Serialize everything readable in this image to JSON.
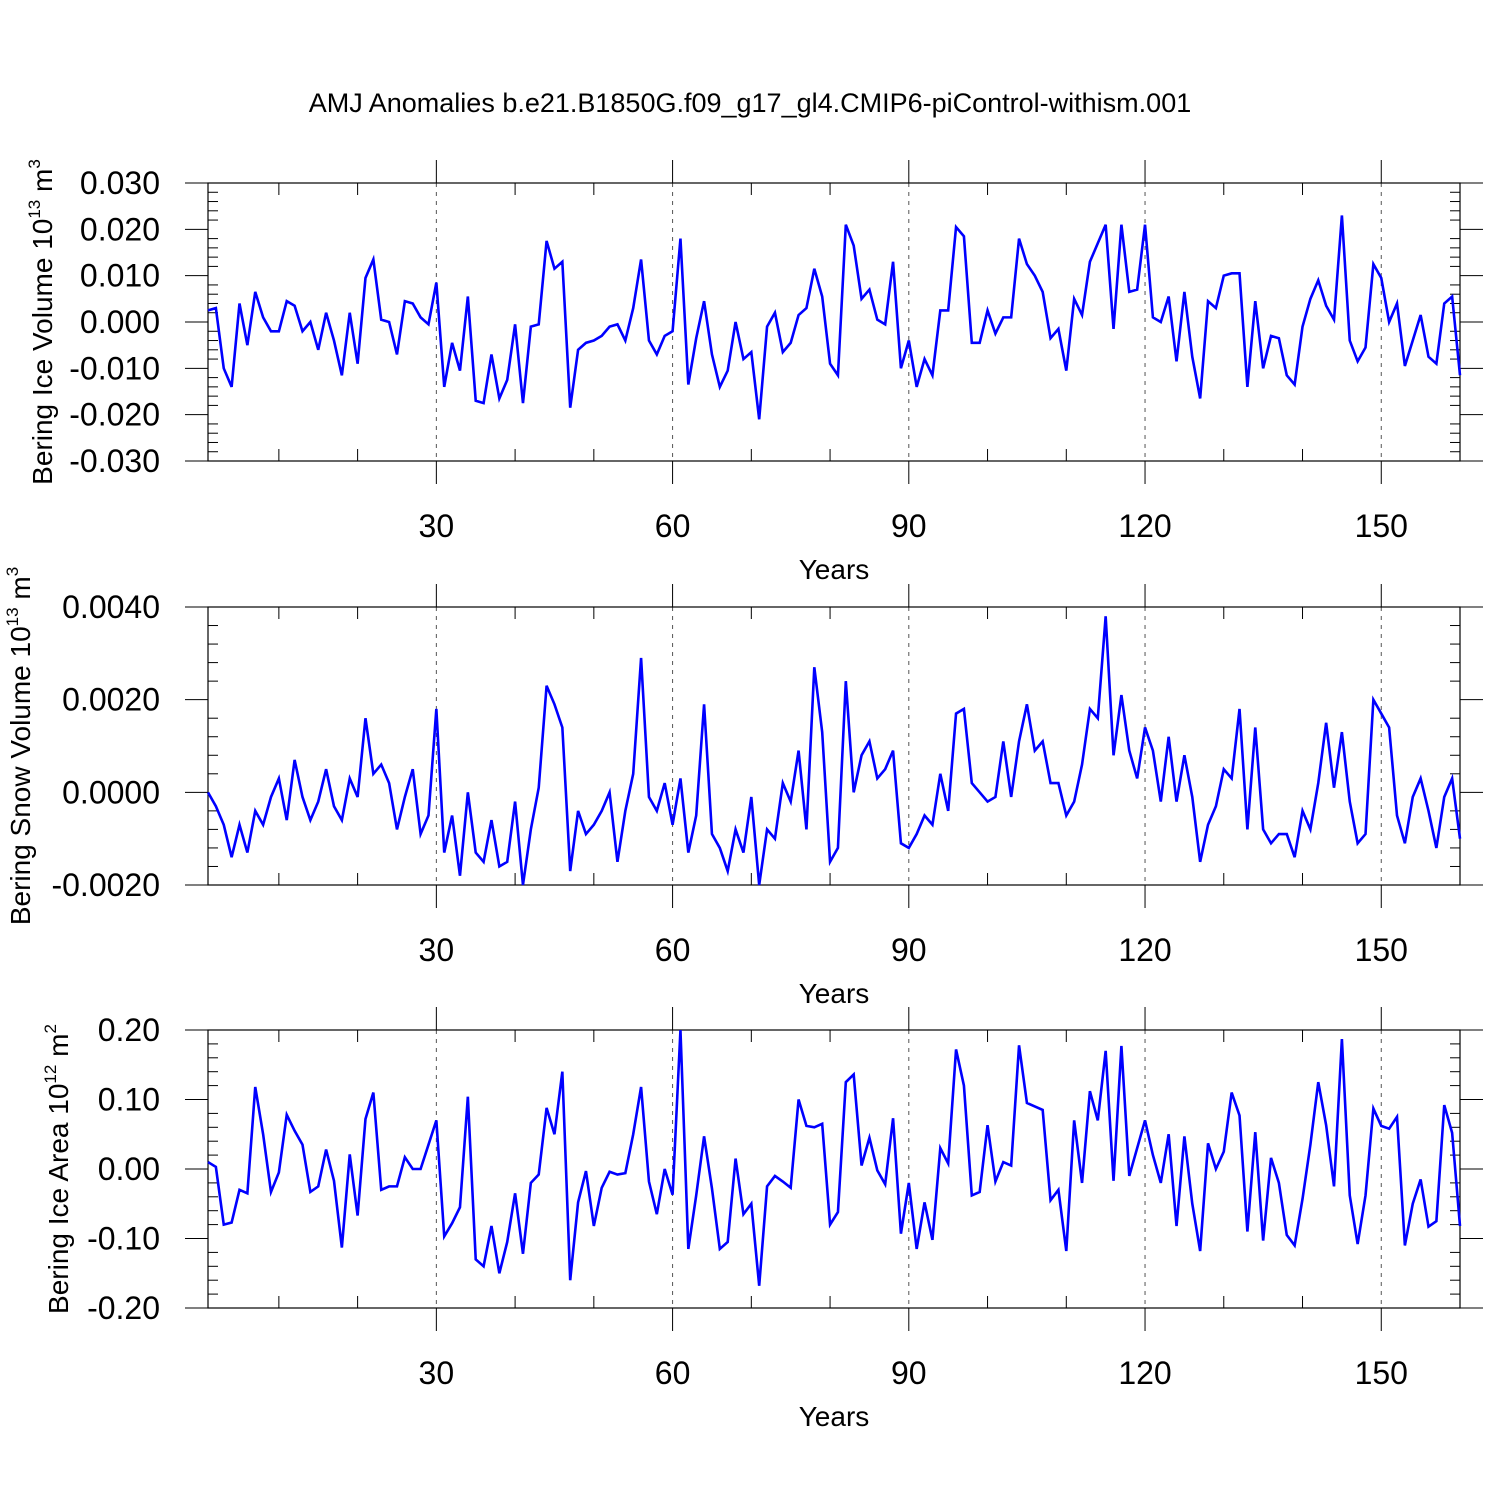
{
  "page_title": "AMJ Anomalies b.e21.B1850G.f09_g17_gl4.CMIP6-piControl-withism.001",
  "colors": {
    "series": "#0000ff",
    "axes": "#000000",
    "refline": "#555555"
  },
  "chart_data": [
    {
      "type": "line",
      "title": "",
      "xlabel": "Years",
      "ylabel": {
        "text": "Bering Ice Volume 10",
        "exp": "13",
        "unit": " m",
        "unit_exp": "3"
      },
      "xlim": [
        1,
        160
      ],
      "ylim": [
        -0.03,
        0.03
      ],
      "xticks": [
        30,
        60,
        90,
        120,
        150
      ],
      "xtick_labels": [
        "30",
        "60",
        "90",
        "120",
        "150"
      ],
      "yticks": [
        -0.03,
        -0.02,
        -0.01,
        0.0,
        0.01,
        0.02,
        0.03
      ],
      "ytick_labels": [
        "-0.030",
        "-0.020",
        "-0.010",
        "0.000",
        "0.010",
        "0.020",
        "0.030"
      ],
      "vlines": [
        30,
        60,
        90,
        120,
        150
      ],
      "grid": false,
      "series": [
        {
          "x_start": 1,
          "values": [
            0.0025,
            0.003,
            -0.01,
            -0.014,
            0.004,
            -0.005,
            0.0065,
            0.001,
            -0.002,
            -0.002,
            0.0045,
            0.0035,
            -0.002,
            0.0,
            -0.006,
            0.002,
            -0.004,
            -0.0115,
            0.002,
            -0.009,
            0.0095,
            0.0135,
            0.0005,
            0.0,
            -0.007,
            0.0045,
            0.004,
            0.001,
            -0.0005,
            0.0085,
            -0.014,
            -0.0045,
            -0.0105,
            0.0055,
            -0.017,
            -0.0175,
            -0.007,
            -0.0165,
            -0.0125,
            -0.0005,
            -0.0175,
            -0.001,
            -0.0005,
            0.0175,
            0.0115,
            0.013,
            -0.0185,
            -0.006,
            -0.0045,
            -0.004,
            -0.003,
            -0.001,
            -0.0005,
            -0.004,
            0.003,
            0.0135,
            -0.004,
            -0.007,
            -0.003,
            -0.002,
            0.018,
            -0.0135,
            -0.0035,
            0.0045,
            -0.007,
            -0.014,
            -0.0105,
            0.0,
            -0.008,
            -0.0065,
            -0.021,
            -0.001,
            0.002,
            -0.0065,
            -0.0045,
            0.0015,
            0.003,
            0.0115,
            0.0055,
            -0.009,
            -0.0115,
            0.021,
            0.0165,
            0.005,
            0.007,
            0.0005,
            -0.0005,
            0.013,
            -0.01,
            -0.004,
            -0.014,
            -0.008,
            -0.0115,
            0.0025,
            0.0025,
            0.0205,
            0.0185,
            -0.0045,
            -0.0045,
            0.0025,
            -0.0025,
            0.001,
            0.001,
            0.018,
            0.0125,
            0.01,
            0.0065,
            -0.0035,
            -0.0015,
            -0.0105,
            0.005,
            0.0015,
            0.013,
            0.017,
            0.021,
            -0.0015,
            0.021,
            0.0065,
            0.007,
            0.021,
            0.001,
            0.0,
            0.0055,
            -0.0085,
            0.0065,
            -0.0075,
            -0.0165,
            0.0045,
            0.003,
            0.01,
            0.0105,
            0.0105,
            -0.014,
            0.0045,
            -0.01,
            -0.003,
            -0.0035,
            -0.0115,
            -0.0135,
            -0.001,
            0.005,
            0.009,
            0.0035,
            0.0005,
            0.023,
            -0.004,
            -0.0085,
            -0.0055,
            0.0125,
            0.0095,
            0.0,
            0.004,
            -0.0095,
            -0.004,
            0.0015,
            -0.0075,
            -0.009,
            0.004,
            0.0055,
            -0.0115
          ]
        }
      ]
    },
    {
      "type": "line",
      "title": "",
      "xlabel": "Years",
      "ylabel": {
        "text": "Bering Snow Volume 10",
        "exp": "13",
        "unit": " m",
        "unit_exp": "3"
      },
      "xlim": [
        1,
        160
      ],
      "ylim": [
        -0.002,
        0.004
      ],
      "xticks": [
        30,
        60,
        90,
        120,
        150
      ],
      "xtick_labels": [
        "30",
        "60",
        "90",
        "120",
        "150"
      ],
      "yticks": [
        -0.002,
        0.0,
        0.002,
        0.004
      ],
      "ytick_labels": [
        "-0.0020",
        "0.0000",
        "0.0020",
        "0.0040"
      ],
      "vlines": [
        30,
        60,
        90,
        120,
        150
      ],
      "grid": false,
      "series": [
        {
          "x_start": 1,
          "values": [
            0.0,
            -0.0003,
            -0.0007,
            -0.0014,
            -0.0007,
            -0.0013,
            -0.0004,
            -0.0007,
            -0.0001,
            0.0003,
            -0.0006,
            0.0007,
            -0.0001,
            -0.0006,
            -0.0002,
            0.0005,
            -0.0003,
            -0.0006,
            0.0003,
            -0.0001,
            0.0016,
            0.0004,
            0.0006,
            0.0002,
            -0.0008,
            -0.0001,
            0.0005,
            -0.0009,
            -0.0005,
            0.0018,
            -0.0013,
            -0.0005,
            -0.0018,
            0.0,
            -0.0013,
            -0.0015,
            -0.0006,
            -0.0016,
            -0.0015,
            -0.0002,
            -0.002,
            -0.0008,
            0.0001,
            0.0023,
            0.0019,
            0.0014,
            -0.0017,
            -0.0004,
            -0.0009,
            -0.0007,
            -0.0004,
            0.0,
            -0.0015,
            -0.0004,
            0.0004,
            0.0029,
            -0.0001,
            -0.0004,
            0.0002,
            -0.0007,
            0.0003,
            -0.0013,
            -0.0005,
            0.0019,
            -0.0009,
            -0.0012,
            -0.0017,
            -0.0008,
            -0.0013,
            -0.0001,
            -0.002,
            -0.0008,
            -0.001,
            0.0002,
            -0.0002,
            0.0009,
            -0.0008,
            0.0027,
            0.0013,
            -0.0015,
            -0.0012,
            0.0024,
            0.0,
            0.0008,
            0.0011,
            0.0003,
            0.0005,
            0.0009,
            -0.0011,
            -0.0012,
            -0.0009,
            -0.0005,
            -0.0007,
            0.0004,
            -0.0004,
            0.0017,
            0.0018,
            0.0002,
            0.0,
            -0.0002,
            -0.0001,
            0.0011,
            -0.0001,
            0.0011,
            0.0019,
            0.0009,
            0.0011,
            0.0002,
            0.0002,
            -0.0005,
            -0.0002,
            0.0006,
            0.0018,
            0.0016,
            0.0038,
            0.0008,
            0.0021,
            0.0009,
            0.0003,
            0.0014,
            0.0009,
            -0.0002,
            0.0012,
            -0.0002,
            0.0008,
            -0.0001,
            -0.0015,
            -0.0007,
            -0.0003,
            0.0005,
            0.0003,
            0.0018,
            -0.0008,
            0.0014,
            -0.0008,
            -0.0011,
            -0.0009,
            -0.0009,
            -0.0014,
            -0.0004,
            -0.0008,
            0.0002,
            0.0015,
            0.0001,
            0.0013,
            -0.0002,
            -0.0011,
            -0.0009,
            0.002,
            0.0017,
            0.0014,
            -0.0005,
            -0.0011,
            -0.0001,
            0.0003,
            -0.0004,
            -0.0012,
            -0.0001,
            0.0003,
            -0.001
          ]
        }
      ]
    },
    {
      "type": "line",
      "title": "",
      "xlabel": "Years",
      "ylabel": {
        "text": "Bering Ice Area 10",
        "exp": "12",
        "unit": " m",
        "unit_exp": "2"
      },
      "xlim": [
        1,
        160
      ],
      "ylim": [
        -0.2,
        0.2
      ],
      "xticks": [
        30,
        60,
        90,
        120,
        150
      ],
      "xtick_labels": [
        "30",
        "60",
        "90",
        "120",
        "150"
      ],
      "yticks": [
        -0.2,
        -0.1,
        0.0,
        0.1,
        0.2
      ],
      "ytick_labels": [
        "-0.20",
        "-0.10",
        "0.00",
        "0.10",
        "0.20"
      ],
      "vlines": [
        30,
        60,
        90,
        120,
        150
      ],
      "grid": false,
      "series": [
        {
          "x_start": 1,
          "values": [
            0.01,
            0.003,
            -0.08,
            -0.077,
            -0.03,
            -0.035,
            0.118,
            0.05,
            -0.033,
            -0.005,
            0.078,
            0.055,
            0.035,
            -0.033,
            -0.025,
            0.028,
            -0.017,
            -0.113,
            0.021,
            -0.067,
            0.072,
            0.11,
            -0.03,
            -0.025,
            -0.025,
            0.017,
            0.0,
            0.0,
            0.035,
            0.07,
            -0.097,
            -0.078,
            -0.055,
            0.104,
            -0.13,
            -0.14,
            -0.082,
            -0.15,
            -0.105,
            -0.035,
            -0.122,
            -0.02,
            -0.008,
            0.088,
            0.05,
            0.14,
            -0.16,
            -0.048,
            -0.003,
            -0.082,
            -0.027,
            -0.004,
            -0.008,
            -0.006,
            0.05,
            0.118,
            -0.018,
            -0.065,
            0.0,
            -0.037,
            0.2,
            -0.115,
            -0.038,
            0.047,
            -0.028,
            -0.115,
            -0.105,
            0.015,
            -0.065,
            -0.05,
            -0.168,
            -0.025,
            -0.01,
            -0.018,
            -0.027,
            0.1,
            0.062,
            0.06,
            0.065,
            -0.08,
            -0.062,
            0.125,
            0.136,
            0.005,
            0.045,
            -0.002,
            -0.022,
            0.073,
            -0.093,
            -0.02,
            -0.115,
            -0.048,
            -0.102,
            0.03,
            0.008,
            0.172,
            0.12,
            -0.038,
            -0.033,
            0.063,
            -0.018,
            0.01,
            0.005,
            0.178,
            0.095,
            0.09,
            0.085,
            -0.045,
            -0.03,
            -0.118,
            0.07,
            -0.02,
            0.112,
            0.07,
            0.17,
            -0.017,
            0.177,
            -0.01,
            0.03,
            0.07,
            0.02,
            -0.02,
            0.05,
            -0.082,
            0.047,
            -0.05,
            -0.118,
            0.037,
            0.0,
            0.025,
            0.11,
            0.077,
            -0.09,
            0.053,
            -0.103,
            0.016,
            -0.02,
            -0.095,
            -0.11,
            -0.043,
            0.035,
            0.125,
            0.063,
            -0.025,
            0.187,
            -0.038,
            -0.108,
            -0.038,
            0.087,
            0.062,
            0.058,
            0.075,
            -0.11,
            -0.05,
            -0.015,
            -0.083,
            -0.075,
            0.092,
            0.052,
            -0.082
          ]
        }
      ]
    }
  ]
}
